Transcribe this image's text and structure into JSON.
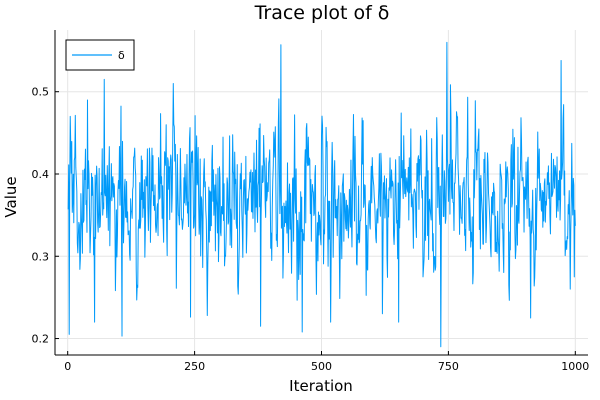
{
  "chart_data": {
    "type": "line",
    "title": "Trace plot of δ",
    "xlabel": "Iteration",
    "ylabel": "Value",
    "xlim": [
      -25,
      1025
    ],
    "ylim": [
      0.18,
      0.575
    ],
    "xticks": [
      0,
      250,
      500,
      750,
      1000
    ],
    "yticks": [
      0.2,
      0.3,
      0.4,
      0.5
    ],
    "xtick_labels": [
      "0",
      "250",
      "500",
      "750",
      "1000"
    ],
    "ytick_labels": [
      "0.2",
      "0.3",
      "0.4",
      "0.5"
    ],
    "grid": true,
    "legend": {
      "position": "top-left",
      "entries": [
        "δ"
      ]
    },
    "series": [
      {
        "name": "δ",
        "color": "#009AFA",
        "x_start": 1,
        "x_step": 1,
        "n_points": 1000,
        "summary": {
          "center": 0.37,
          "min": 0.19,
          "max": 0.56
        },
        "extremes": [
          {
            "x": 3,
            "y": 0.205
          },
          {
            "x": 39,
            "y": 0.49
          },
          {
            "x": 72,
            "y": 0.515
          },
          {
            "x": 107,
            "y": 0.203
          },
          {
            "x": 242,
            "y": 0.226
          },
          {
            "x": 275,
            "y": 0.228
          },
          {
            "x": 380,
            "y": 0.215
          },
          {
            "x": 420,
            "y": 0.557
          },
          {
            "x": 462,
            "y": 0.208
          },
          {
            "x": 652,
            "y": 0.22
          },
          {
            "x": 735,
            "y": 0.19
          },
          {
            "x": 747,
            "y": 0.56
          },
          {
            "x": 912,
            "y": 0.225
          },
          {
            "x": 972,
            "y": 0.538
          },
          {
            "x": 990,
            "y": 0.26
          },
          {
            "x": 998,
            "y": 0.275
          }
        ]
      }
    ]
  }
}
